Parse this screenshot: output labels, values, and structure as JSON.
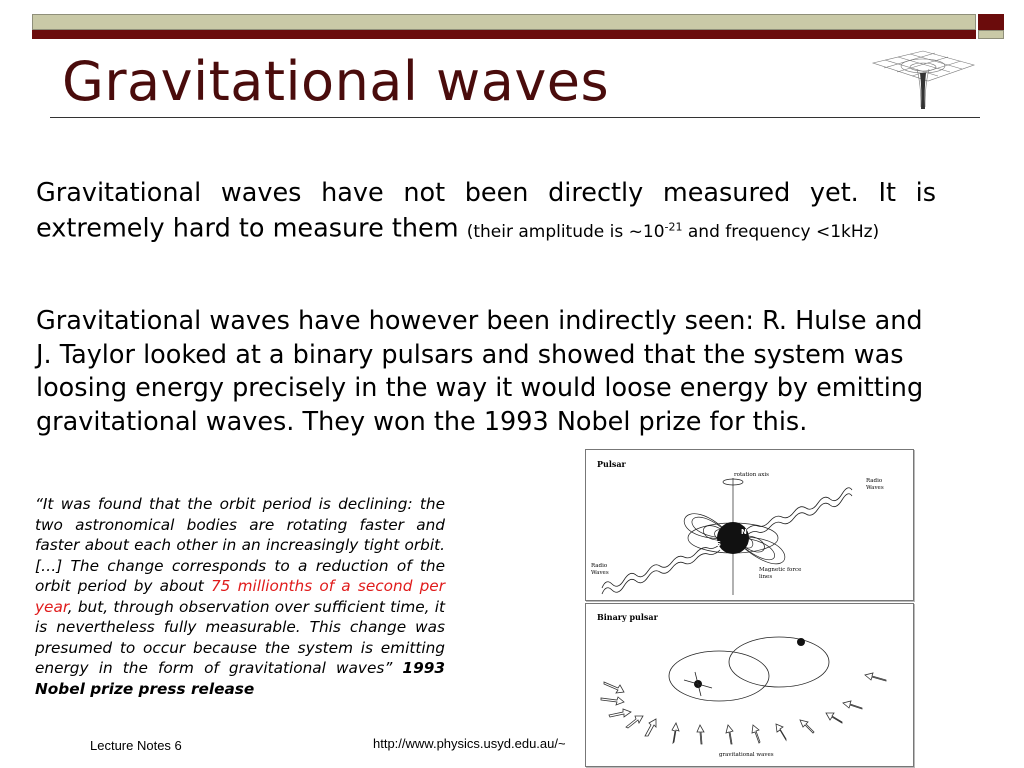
{
  "slide": {
    "title": "Gravitational waves",
    "paragraph1": {
      "main": "Gravitational waves have not been directly measured yet. It is extremely hard to measure them ",
      "small_a": "(their amplitude is ~10",
      "exponent": "-21",
      "small_b": "  and frequency <1kHz)"
    },
    "paragraph2": "Gravitational waves have however been indirectly seen: R. Hulse and J. Taylor  looked at a binary pulsars and showed that the system was loosing energy precisely in the way it would loose energy by emitting gravitational waves. They won the 1993 Nobel prize for this.",
    "quote": {
      "part1": "“It was found that the orbit period is declining: the two astronomical bodies are rotating faster and faster about each other in an increasingly tight orbit. […] The change corresponds to a reduction of the orbit period by about ",
      "highlight": "75 millionths of a second per year",
      "part2": ", but, through observation over sufficient time, it is nevertheless fully measurable. This change was presumed to occur because the system is emitting energy in the form of gravitational waves” ",
      "source": "1993 Nobel prize press release"
    },
    "colors": {
      "accent": "#6b0c0c",
      "band": "#c9c9a7",
      "highlight": "#e01b1b"
    }
  },
  "footer": {
    "left": "Lecture Notes 6",
    "url": "http://www.physics.usyd.edu.au/~"
  },
  "figures": {
    "pulsar": {
      "title": "Pulsar",
      "rotation_axis": "rotation axis",
      "radio_waves_top": [
        "Radio",
        "Waves"
      ],
      "radio_waves_bottom": [
        "Radio",
        "Waves"
      ],
      "magnetic_field": [
        "Magnetic force",
        "lines"
      ],
      "pole_s": "S",
      "pole_n": "N"
    },
    "binary": {
      "title": "Binary pulsar",
      "caption": "gravitational waves"
    }
  }
}
